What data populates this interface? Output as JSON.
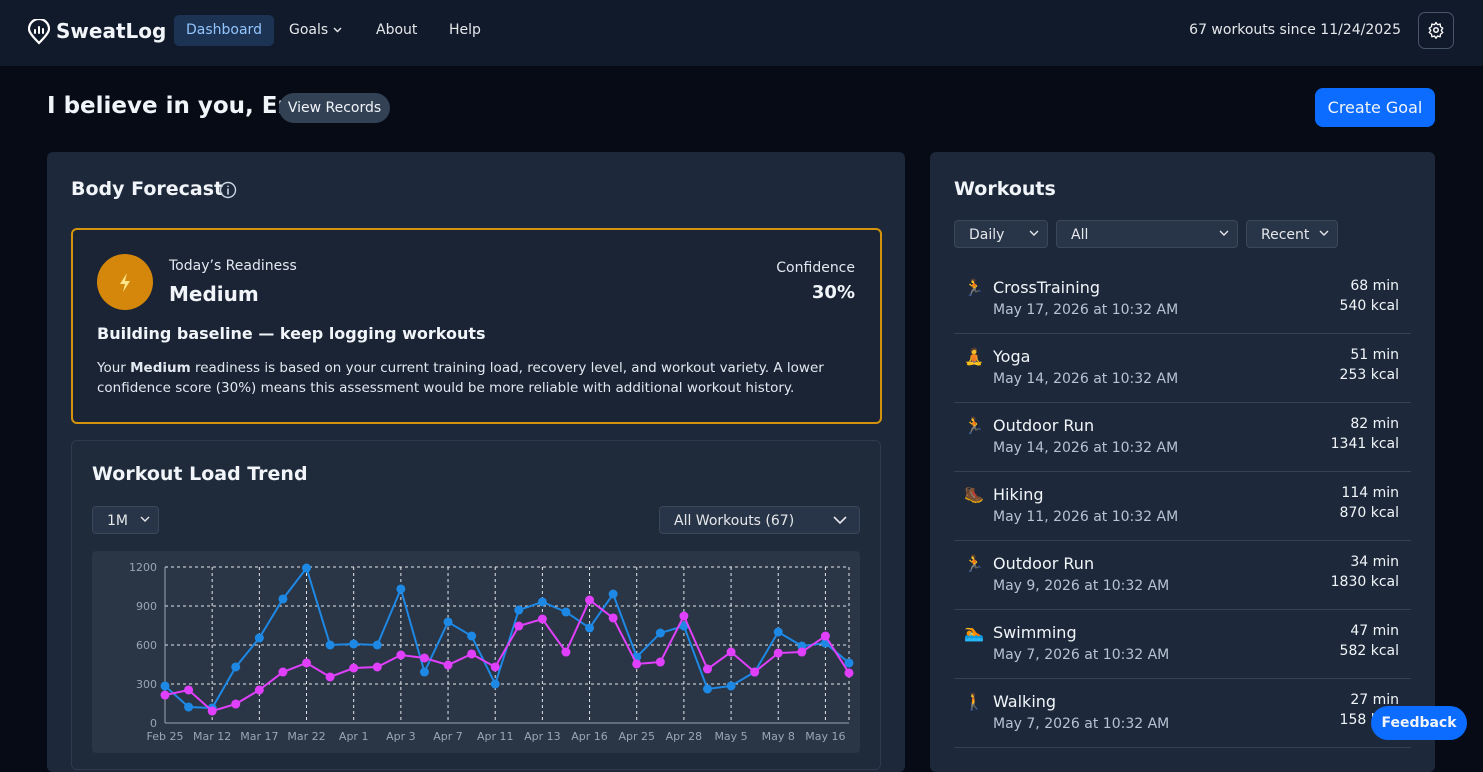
{
  "nav": {
    "brand": "SweatLog",
    "links": [
      "Dashboard",
      "Goals",
      "About",
      "Help"
    ],
    "status": "67 workouts since 11/24/2025"
  },
  "header": {
    "greeting": "I believe in you, Eric",
    "view_records": "View Records",
    "create_goal": "Create Goal"
  },
  "forecast": {
    "title": "Body Forecast",
    "readiness_label": "Today’s Readiness",
    "readiness": "Medium",
    "confidence_label": "Confidence",
    "confidence": "30%",
    "headline": "Building baseline — keep logging workouts",
    "description": [
      "Your ",
      "Medium",
      " readiness is based on your current training load, recovery level, and workout variety. A lower confidence score (30%) means this assessment would be more reliable with additional workout history."
    ]
  },
  "trend": {
    "title": "Workout Load Trend",
    "range": "1M",
    "filter": "All Workouts (67)"
  },
  "chart_data": {
    "type": "line",
    "categories": [
      "Feb 25",
      null,
      "Mar 12",
      null,
      "Mar 17",
      null,
      "Mar 22",
      null,
      "Apr 1",
      null,
      "Apr 3",
      null,
      "Apr 7",
      null,
      "Apr 11",
      null,
      "Apr 13",
      null,
      "Apr 16",
      null,
      "Apr 25",
      null,
      "Apr 28",
      null,
      "May 5",
      null,
      "May 8",
      null,
      "May 16",
      null
    ],
    "series": [
      {
        "color": "#1e88e5",
        "values": [
          285,
          123,
          115,
          431,
          654,
          954,
          1192,
          600,
          608,
          600,
          1031,
          392,
          777,
          669,
          300,
          869,
          931,
          854,
          731,
          992,
          508,
          692,
          746,
          262,
          285,
          392,
          700,
          592,
          615,
          462
        ]
      },
      {
        "color": "#e040fb",
        "values": [
          215,
          254,
          92,
          146,
          254,
          392,
          462,
          354,
          423,
          431,
          523,
          500,
          446,
          531,
          431,
          746,
          800,
          546,
          946,
          808,
          454,
          469,
          823,
          415,
          546,
          392,
          538,
          546,
          669,
          385
        ]
      }
    ],
    "ylim": [
      0,
      1200
    ],
    "yticks": [
      0,
      300,
      600,
      900,
      1200
    ],
    "grid": true
  },
  "workouts": {
    "title": "Workouts",
    "filters": [
      "Daily",
      "All",
      "Recent"
    ],
    "items": [
      {
        "icon": "🏃",
        "name": "CrossTraining",
        "date": "May 17, 2026 at 10:32 AM",
        "duration": "68 min",
        "calories": "540 kcal"
      },
      {
        "icon": "🧘",
        "name": "Yoga",
        "date": "May 14, 2026 at 10:32 AM",
        "duration": "51 min",
        "calories": "253 kcal"
      },
      {
        "icon": "🏃",
        "name": "Outdoor Run",
        "date": "May 14, 2026 at 10:32 AM",
        "duration": "82 min",
        "calories": "1341 kcal"
      },
      {
        "icon": "🥾",
        "name": "Hiking",
        "date": "May 11, 2026 at 10:32 AM",
        "duration": "114 min",
        "calories": "870 kcal"
      },
      {
        "icon": "🏃",
        "name": "Outdoor Run",
        "date": "May 9, 2026 at 10:32 AM",
        "duration": "34 min",
        "calories": "1830 kcal"
      },
      {
        "icon": "🏊",
        "name": "Swimming",
        "date": "May 7, 2026 at 10:32 AM",
        "duration": "47 min",
        "calories": "582 kcal"
      },
      {
        "icon": "🚶",
        "name": "Walking",
        "date": "May 7, 2026 at 10:32 AM",
        "duration": "27 min",
        "calories": "158 kcal"
      }
    ]
  },
  "feedback": "Feedback"
}
